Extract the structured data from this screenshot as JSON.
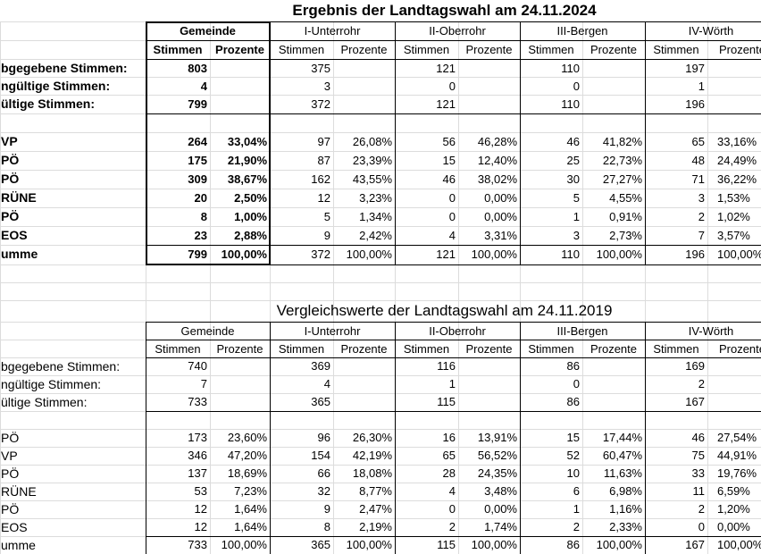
{
  "tables": [
    {
      "title": "Ergebnis der Landtagswahl am 24.11.2024",
      "groups": [
        "Gemeinde",
        "I-Unterrohr",
        "II-Oberrohr",
        "III-Bergen",
        "IV-Wörth"
      ],
      "subheaders": [
        "Stimmen",
        "Prozente",
        "Stimmen",
        "Prozente",
        "Stimmen",
        "Prozente",
        "Stimmen",
        "Prozente",
        "Stimmen",
        "Prozente"
      ],
      "rows": [
        {
          "label": "bgegebene Stimmen:",
          "cells": [
            "803",
            null,
            "375",
            null,
            "121",
            null,
            "110",
            null,
            "197",
            null
          ]
        },
        {
          "label": "ngültige Stimmen:",
          "cells": [
            "4",
            null,
            "3",
            null,
            "0",
            null,
            "0",
            null,
            "1",
            null
          ]
        },
        {
          "label": "ültige Stimmen:",
          "cells": [
            "799",
            null,
            "372",
            null,
            "121",
            null,
            "110",
            null,
            "196",
            null
          ]
        },
        {
          "label": "VP",
          "cells": [
            "264",
            "33,04%",
            "97",
            "26,08%",
            "56",
            "46,28%",
            "46",
            "41,82%",
            "65",
            "33,16%"
          ]
        },
        {
          "label": "PÖ",
          "cells": [
            "175",
            "21,90%",
            "87",
            "23,39%",
            "15",
            "12,40%",
            "25",
            "22,73%",
            "48",
            "24,49%"
          ]
        },
        {
          "label": "PÖ",
          "cells": [
            "309",
            "38,67%",
            "162",
            "43,55%",
            "46",
            "38,02%",
            "30",
            "27,27%",
            "71",
            "36,22%"
          ]
        },
        {
          "label": "RÜNE",
          "cells": [
            "20",
            "2,50%",
            "12",
            "3,23%",
            "0",
            "0,00%",
            "5",
            "4,55%",
            "3",
            "1,53%"
          ]
        },
        {
          "label": "PÖ",
          "cells": [
            "8",
            "1,00%",
            "5",
            "1,34%",
            "0",
            "0,00%",
            "1",
            "0,91%",
            "2",
            "1,02%"
          ]
        },
        {
          "label": "EOS",
          "cells": [
            "23",
            "2,88%",
            "9",
            "2,42%",
            "4",
            "3,31%",
            "3",
            "2,73%",
            "7",
            "3,57%"
          ]
        },
        {
          "label": "umme",
          "cells": [
            "799",
            "100,00%",
            "372",
            "100,00%",
            "121",
            "100,00%",
            "110",
            "100,00%",
            "196",
            "100,00%"
          ]
        }
      ]
    },
    {
      "title": "Vergleichswerte der Landtagswahl am 24.11.2019",
      "groups": [
        "Gemeinde",
        "I-Unterrohr",
        "II-Oberrohr",
        "III-Bergen",
        "IV-Wörth"
      ],
      "subheaders": [
        "Stimmen",
        "Prozente",
        "Stimmen",
        "Prozente",
        "Stimmen",
        "Prozente",
        "Stimmen",
        "Prozente",
        "Stimmen",
        "Prozente"
      ],
      "rows": [
        {
          "label": "bgegebene Stimmen:",
          "cells": [
            "740",
            null,
            "369",
            null,
            "116",
            null,
            "86",
            null,
            "169",
            null
          ]
        },
        {
          "label": "ngültige Stimmen:",
          "cells": [
            "7",
            null,
            "4",
            null,
            "1",
            null,
            "0",
            null,
            "2",
            null
          ]
        },
        {
          "label": "ültige Stimmen:",
          "cells": [
            "733",
            null,
            "365",
            null,
            "115",
            null,
            "86",
            null,
            "167",
            null
          ]
        },
        {
          "label": "PÖ",
          "cells": [
            "173",
            "23,60%",
            "96",
            "26,30%",
            "16",
            "13,91%",
            "15",
            "17,44%",
            "46",
            "27,54%"
          ]
        },
        {
          "label": "VP",
          "cells": [
            "346",
            "47,20%",
            "154",
            "42,19%",
            "65",
            "56,52%",
            "52",
            "60,47%",
            "75",
            "44,91%"
          ]
        },
        {
          "label": "PÖ",
          "cells": [
            "137",
            "18,69%",
            "66",
            "18,08%",
            "28",
            "24,35%",
            "10",
            "11,63%",
            "33",
            "19,76%"
          ]
        },
        {
          "label": "RÜNE",
          "cells": [
            "53",
            "7,23%",
            "32",
            "8,77%",
            "4",
            "3,48%",
            "6",
            "6,98%",
            "11",
            "6,59%"
          ]
        },
        {
          "label": "PÖ",
          "cells": [
            "12",
            "1,64%",
            "9",
            "2,47%",
            "0",
            "0,00%",
            "1",
            "1,16%",
            "2",
            "1,20%"
          ]
        },
        {
          "label": "EOS",
          "cells": [
            "12",
            "1,64%",
            "8",
            "2,19%",
            "2",
            "1,74%",
            "2",
            "2,33%",
            "0",
            "0,00%"
          ]
        },
        {
          "label": "umme",
          "cells": [
            "733",
            "100,00%",
            "365",
            "100,00%",
            "115",
            "100,00%",
            "86",
            "100,00%",
            "167",
            "100,00%"
          ]
        }
      ]
    }
  ]
}
